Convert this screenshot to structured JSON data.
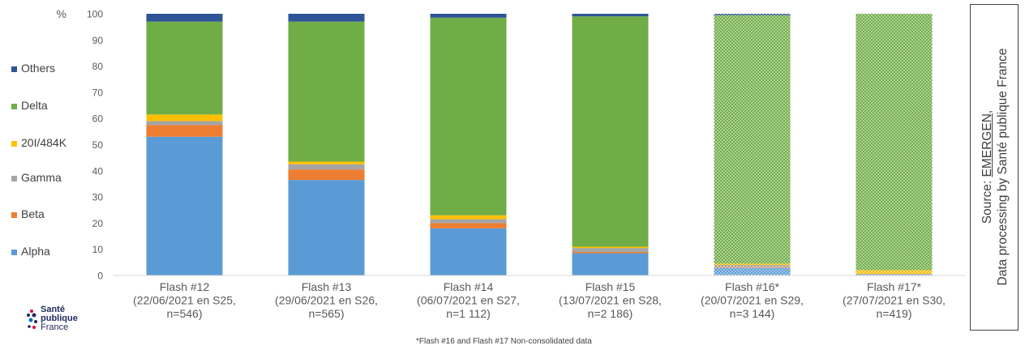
{
  "chart_data": {
    "type": "stacked-bar",
    "ylabel": "%",
    "ylim": [
      0,
      100
    ],
    "yticks": [
      0,
      10,
      20,
      30,
      40,
      50,
      60,
      70,
      80,
      90,
      100
    ],
    "grid": false,
    "legend_position": "left",
    "categories": [
      [
        "Flash #12",
        "(22/06/2021 en S25,",
        "n=546)"
      ],
      [
        "Flash #13",
        "(29/06/2021 en S26,",
        "n=565)"
      ],
      [
        "Flash #14",
        "(06/07/2021 en S27,",
        "n=1 112)"
      ],
      [
        "Flash #15",
        "(13/07/2021 en S28,",
        "n=2 186)"
      ],
      [
        "Flash #16*",
        "(20/07/2021 en S29,",
        "n=3 144)"
      ],
      [
        "Flash #17*",
        "(27/07/2021 en S30,",
        "n=419)"
      ]
    ],
    "dotted": [
      false,
      false,
      false,
      false,
      true,
      true
    ],
    "series": [
      {
        "name": "Alpha",
        "color": "#5b9bd5",
        "values": [
          53,
          36.5,
          18,
          8.5,
          3,
          0.3
        ]
      },
      {
        "name": "Beta",
        "color": "#ed7d31",
        "values": [
          4.5,
          4,
          2,
          0.5,
          0.3,
          0
        ]
      },
      {
        "name": "Gamma",
        "color": "#a5a5a5",
        "values": [
          1.5,
          2,
          1.5,
          1.5,
          0.7,
          0.3
        ]
      },
      {
        "name": "20I/484K",
        "color": "#ffc000",
        "values": [
          2.5,
          1,
          1.5,
          0.5,
          0.5,
          1.4
        ]
      },
      {
        "name": "Delta",
        "color": "#70ad47",
        "values": [
          35.5,
          53.5,
          75.5,
          88,
          95,
          98
        ]
      },
      {
        "name": "Others",
        "color": "#2f5597",
        "values": [
          3,
          3,
          1.5,
          1,
          0.5,
          0
        ]
      }
    ]
  },
  "footnote": "*Flash #16 and Flash #17 Non-consolidated data",
  "source": {
    "prefix": "Source: ",
    "link": "EMERGEN",
    "suffix": ",",
    "line2": "Data processing by Santé publique France"
  },
  "logo": {
    "line1": "Santé",
    "line2": "publique",
    "line3": "France"
  }
}
